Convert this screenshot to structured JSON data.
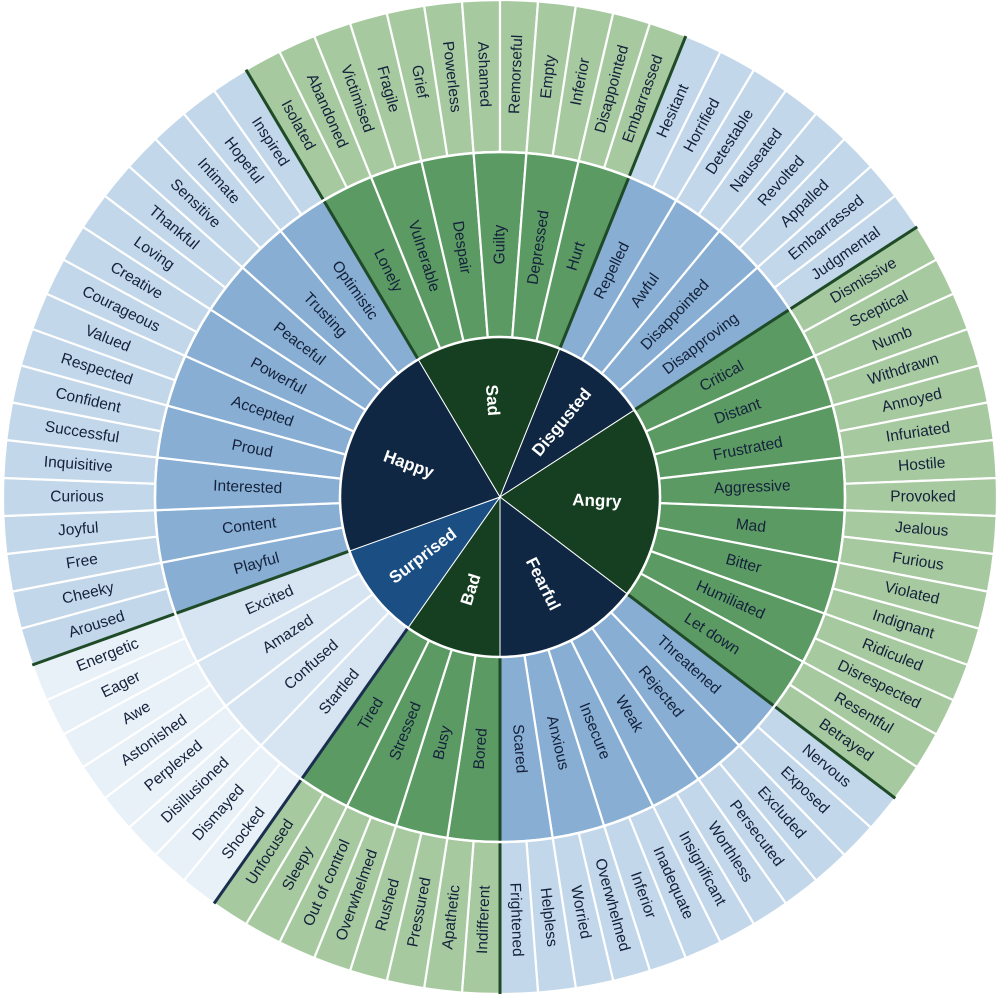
{
  "wheel": {
    "core": [
      {
        "label": "Bad",
        "colors": {
          "core": "#163f22",
          "mid": "#5c9a64",
          "outer": "#a7c9a0",
          "line": "#ffffff",
          "divider": "#1f4a27"
        },
        "mid": [
          {
            "label": "Bored",
            "outer": [
              "Indifferent",
              "Apathetic"
            ]
          },
          {
            "label": "Busy",
            "outer": [
              "Pressured",
              "Rushed"
            ]
          },
          {
            "label": "Stressed",
            "outer": [
              "Overwhelmed",
              "Out of control"
            ]
          },
          {
            "label": "Tired",
            "outer": [
              "Sleepy",
              "Unfocused"
            ]
          }
        ]
      },
      {
        "label": "Surprised",
        "colors": {
          "core": "#1b4f84",
          "mid": "#d7e4f1",
          "outer": "#e8f0f8",
          "line": "#ffffff",
          "divider": "#1a2f4f"
        },
        "mid": [
          {
            "label": "Startled",
            "outer": [
              "Shocked",
              "Dismayed"
            ]
          },
          {
            "label": "Confused",
            "outer": [
              "Disillusioned",
              "Perplexed"
            ]
          },
          {
            "label": "Amazed",
            "outer": [
              "Astonished",
              "Awe"
            ]
          },
          {
            "label": "Excited",
            "outer": [
              "Eager",
              "Energetic"
            ]
          }
        ]
      },
      {
        "label": "Happy",
        "colors": {
          "core": "#0f2742",
          "mid": "#88aed4",
          "outer": "#c2d7ea",
          "line": "#ffffff",
          "divider": "#1f4a27"
        },
        "mid": [
          {
            "label": "Playful",
            "outer": [
              "Aroused",
              "Cheeky"
            ]
          },
          {
            "label": "Content",
            "outer": [
              "Free",
              "Joyful"
            ]
          },
          {
            "label": "Interested",
            "outer": [
              "Curious",
              "Inquisitive"
            ]
          },
          {
            "label": "Proud",
            "outer": [
              "Successful",
              "Confident"
            ]
          },
          {
            "label": "Accepted",
            "outer": [
              "Respected",
              "Valued"
            ]
          },
          {
            "label": "Powerful",
            "outer": [
              "Courageous",
              "Creative"
            ]
          },
          {
            "label": "Peaceful",
            "outer": [
              "Loving",
              "Thankful"
            ]
          },
          {
            "label": "Trusting",
            "outer": [
              "Sensitive",
              "Intimate"
            ]
          },
          {
            "label": "Optimistic",
            "outer": [
              "Hopeful",
              "Inspired"
            ]
          }
        ]
      },
      {
        "label": "Sad",
        "colors": {
          "core": "#163f22",
          "mid": "#5c9a64",
          "outer": "#a7c9a0",
          "line": "#ffffff",
          "divider": "#1f4a27"
        },
        "mid": [
          {
            "label": "Lonely",
            "outer": [
              "Isolated",
              "Abandoned"
            ]
          },
          {
            "label": "Vulnerable",
            "outer": [
              "Victimised",
              "Fragile"
            ]
          },
          {
            "label": "Despair",
            "outer": [
              "Grief",
              "Powerless"
            ]
          },
          {
            "label": "Guilty",
            "outer": [
              "Ashamed",
              "Remorseful"
            ]
          },
          {
            "label": "Depressed",
            "outer": [
              "Empty",
              "Inferior"
            ]
          },
          {
            "label": "Hurt",
            "outer": [
              "Disappointed",
              "Embarrassed"
            ]
          }
        ]
      },
      {
        "label": "Disgusted",
        "colors": {
          "core": "#0f2742",
          "mid": "#88aed4",
          "outer": "#c2d7ea",
          "line": "#ffffff",
          "divider": "#1f4a27"
        },
        "mid": [
          {
            "label": "Repelled",
            "outer": [
              "Hesitant",
              "Horrified"
            ]
          },
          {
            "label": "Awful",
            "outer": [
              "Detestable",
              "Nauseated"
            ]
          },
          {
            "label": "Disappointed",
            "outer": [
              "Revolted",
              "Appalled"
            ]
          },
          {
            "label": "Disapproving",
            "outer": [
              "Embarrassed",
              "Judgmental"
            ]
          }
        ]
      },
      {
        "label": "Angry",
        "colors": {
          "core": "#163f22",
          "mid": "#5c9a64",
          "outer": "#a7c9a0",
          "line": "#ffffff",
          "divider": "#1f4a27"
        },
        "mid": [
          {
            "label": "Critical",
            "outer": [
              "Dismissive",
              "Sceptical"
            ]
          },
          {
            "label": "Distant",
            "outer": [
              "Numb",
              "Withdrawn"
            ]
          },
          {
            "label": "Frustrated",
            "outer": [
              "Annoyed",
              "Infuriated"
            ]
          },
          {
            "label": "Aggressive",
            "outer": [
              "Hostile",
              "Provoked"
            ]
          },
          {
            "label": "Mad",
            "outer": [
              "Jealous",
              "Furious"
            ]
          },
          {
            "label": "Bitter",
            "outer": [
              "Violated",
              "Indignant"
            ]
          },
          {
            "label": "Humiliated",
            "outer": [
              "Ridiculed",
              "Disrespected"
            ]
          },
          {
            "label": "Let down",
            "outer": [
              "Resentful",
              "Betrayed"
            ]
          }
        ]
      },
      {
        "label": "Fearful",
        "colors": {
          "core": "#0f2742",
          "mid": "#88aed4",
          "outer": "#c2d7ea",
          "line": "#ffffff",
          "divider": "#1f4a27"
        },
        "mid": [
          {
            "label": "Threatened",
            "outer": [
              "Nervous",
              "Exposed"
            ]
          },
          {
            "label": "Rejected",
            "outer": [
              "Excluded",
              "Persecuted"
            ]
          },
          {
            "label": "Weak",
            "outer": [
              "Worthless",
              "Insignificant"
            ]
          },
          {
            "label": "Insecure",
            "outer": [
              "Inadequate",
              "Inferior"
            ]
          },
          {
            "label": "Anxious",
            "outer": [
              "Overwhelmed",
              "Worried"
            ]
          },
          {
            "label": "Scared",
            "outer": [
              "Helpless",
              "Frightened"
            ]
          }
        ]
      }
    ]
  }
}
